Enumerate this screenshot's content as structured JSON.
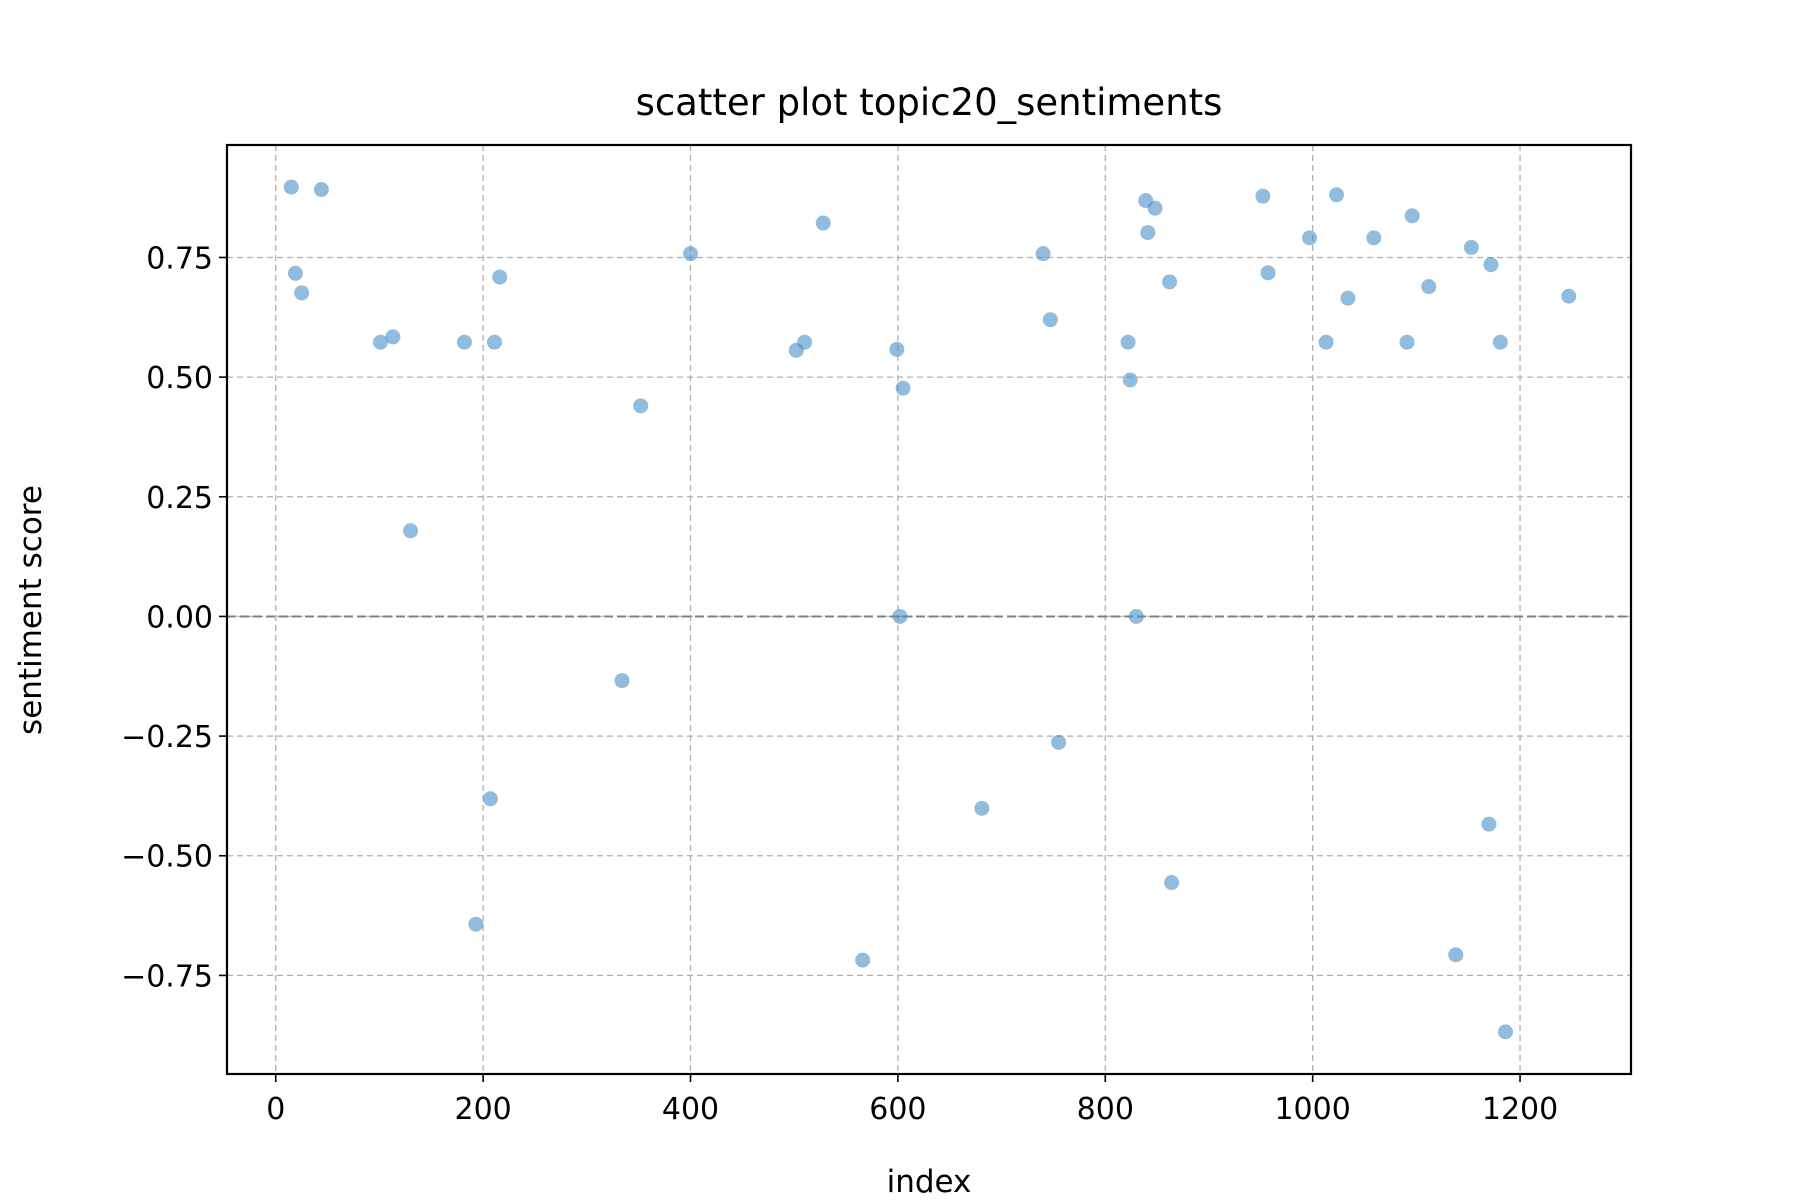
{
  "chart_data": {
    "type": "scatter",
    "title": "scatter plot topic20_sentiments",
    "xlabel": "index",
    "ylabel": "sentiment score",
    "xlim": [
      -47,
      1307
    ],
    "ylim": [
      -0.956,
      0.985
    ],
    "xticks": [
      0,
      200,
      400,
      600,
      800,
      1000,
      1200
    ],
    "xtick_labels": [
      "0",
      "200",
      "400",
      "600",
      "800",
      "1000",
      "1200"
    ],
    "yticks": [
      -0.75,
      -0.5,
      -0.25,
      0.0,
      0.25,
      0.5,
      0.75
    ],
    "ytick_labels": [
      "−0.75",
      "−0.50",
      "−0.25",
      "0.00",
      "0.25",
      "0.50",
      "0.75"
    ],
    "grid": true,
    "zero_line": true,
    "marker_color": "#4a90c8",
    "marker_alpha": 0.6,
    "series": [
      {
        "x": [
          15,
          19,
          25,
          44,
          101,
          113,
          130,
          182,
          193,
          207,
          211,
          216,
          334,
          352,
          400,
          502,
          510,
          528,
          566,
          599,
          602,
          605,
          681,
          740,
          747,
          755,
          822,
          824,
          830,
          839,
          841,
          848,
          862,
          864,
          952,
          957,
          997,
          1013,
          1023,
          1034,
          1059,
          1091,
          1096,
          1112,
          1138,
          1153,
          1170,
          1172,
          1181,
          1186,
          1247
        ],
        "y": [
          0.897,
          0.717,
          0.676,
          0.892,
          0.573,
          0.584,
          0.179,
          0.573,
          -0.643,
          -0.381,
          0.573,
          0.709,
          -0.134,
          0.44,
          0.758,
          0.556,
          0.573,
          0.822,
          -0.718,
          0.558,
          0.0,
          0.477,
          -0.401,
          0.758,
          0.62,
          -0.263,
          0.573,
          0.494,
          0.0,
          0.869,
          0.802,
          0.853,
          0.699,
          -0.556,
          0.878,
          0.718,
          0.791,
          0.573,
          0.881,
          0.665,
          0.791,
          0.573,
          0.837,
          0.689,
          -0.707,
          0.771,
          -0.434,
          0.735,
          0.573,
          -0.868,
          0.669
        ]
      }
    ]
  }
}
